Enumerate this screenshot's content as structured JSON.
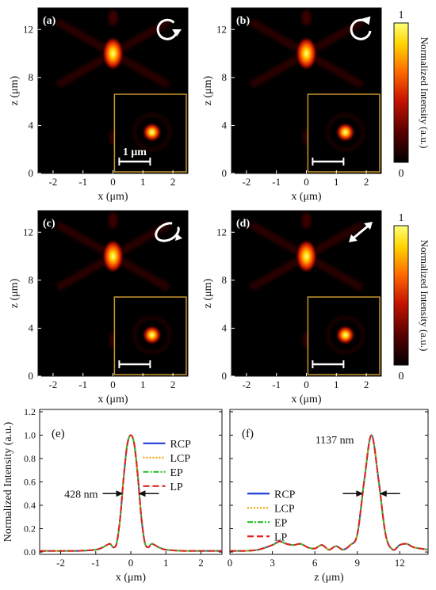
{
  "chart_data": [
    {
      "type": "heatmap",
      "panel_label": "(a)",
      "polarization_icon": "rcp-arrow-icon",
      "xlabel": "x (μm)",
      "ylabel": "z (μm)",
      "xlim": [
        -2.5,
        2.5
      ],
      "ylim": [
        0,
        13.8
      ],
      "xticks": [
        "-2",
        "-1",
        "0",
        "1",
        "2"
      ],
      "yticks": [
        "0",
        "4",
        "8",
        "12"
      ],
      "focus_x": 0.0,
      "focus_z": 10.0,
      "inset_scalebar_label": "1 μm"
    },
    {
      "type": "heatmap",
      "panel_label": "(b)",
      "polarization_icon": "lcp-arrow-icon",
      "xlabel": "x (μm)",
      "ylabel": "z (μm)",
      "xlim": [
        -2.5,
        2.5
      ],
      "ylim": [
        0,
        13.8
      ],
      "xticks": [
        "-2",
        "-1",
        "0",
        "1",
        "2"
      ],
      "yticks": [
        "0",
        "4",
        "8",
        "12"
      ],
      "focus_x": 0.0,
      "focus_z": 10.0,
      "inset_scalebar_label": ""
    },
    {
      "type": "heatmap",
      "panel_label": "(c)",
      "polarization_icon": "ep-arrow-icon",
      "xlabel": "x (μm)",
      "ylabel": "z (μm)",
      "xlim": [
        -2.5,
        2.5
      ],
      "ylim": [
        0,
        13.8
      ],
      "xticks": [
        "-2",
        "-1",
        "0",
        "1",
        "2"
      ],
      "yticks": [
        "0",
        "4",
        "8",
        "12"
      ],
      "focus_x": 0.0,
      "focus_z": 10.0,
      "inset_scalebar_label": ""
    },
    {
      "type": "heatmap",
      "panel_label": "(d)",
      "polarization_icon": "lp-arrow-icon",
      "xlabel": "x (μm)",
      "ylabel": "z (μm)",
      "xlim": [
        -2.5,
        2.5
      ],
      "ylim": [
        0,
        13.8
      ],
      "xticks": [
        "-2",
        "-1",
        "0",
        "1",
        "2"
      ],
      "yticks": [
        "0",
        "4",
        "8",
        "12"
      ],
      "focus_x": 0.0,
      "focus_z": 10.0,
      "inset_scalebar_label": ""
    },
    {
      "type": "line",
      "panel_label": "(e)",
      "xlabel": "x (μm)",
      "ylabel": "Normalized Intensity (a.u.)",
      "xlim": [
        -2.6,
        2.6
      ],
      "ylim": [
        -0.02,
        1.22
      ],
      "xticks": [
        -2,
        -1,
        0,
        1,
        2
      ],
      "yticks": [
        0.0,
        0.2,
        0.4,
        0.6,
        0.8,
        1.0,
        1.2
      ],
      "annotation": "428 nm",
      "fwhm": 0.428,
      "fwhm_center": 0.0,
      "legend_position": "top-right",
      "x": [
        -2.6,
        -2.0,
        -1.5,
        -1.0,
        -0.8,
        -0.6,
        -0.5,
        -0.4,
        -0.3,
        -0.2,
        -0.1,
        0.0,
        0.1,
        0.2,
        0.3,
        0.4,
        0.5,
        0.6,
        0.8,
        1.0,
        1.5,
        2.0,
        2.6
      ],
      "series": [
        {
          "name": "RCP",
          "values": [
            0.01,
            0.01,
            0.01,
            0.02,
            0.04,
            0.07,
            0.04,
            0.08,
            0.3,
            0.65,
            0.92,
            1.0,
            0.92,
            0.65,
            0.3,
            0.08,
            0.04,
            0.07,
            0.04,
            0.02,
            0.01,
            0.01,
            0.01
          ]
        },
        {
          "name": "LCP",
          "values": [
            0.01,
            0.01,
            0.01,
            0.02,
            0.04,
            0.07,
            0.04,
            0.08,
            0.3,
            0.65,
            0.92,
            1.0,
            0.92,
            0.65,
            0.3,
            0.08,
            0.04,
            0.07,
            0.04,
            0.02,
            0.01,
            0.01,
            0.01
          ]
        },
        {
          "name": "EP",
          "values": [
            0.01,
            0.01,
            0.01,
            0.02,
            0.04,
            0.07,
            0.04,
            0.08,
            0.3,
            0.65,
            0.92,
            1.0,
            0.92,
            0.65,
            0.3,
            0.08,
            0.04,
            0.07,
            0.04,
            0.02,
            0.01,
            0.01,
            0.01
          ]
        },
        {
          "name": "LP",
          "values": [
            0.01,
            0.01,
            0.01,
            0.02,
            0.04,
            0.07,
            0.04,
            0.08,
            0.3,
            0.65,
            0.92,
            1.0,
            0.92,
            0.65,
            0.3,
            0.08,
            0.04,
            0.07,
            0.04,
            0.02,
            0.01,
            0.01,
            0.01
          ]
        }
      ]
    },
    {
      "type": "line",
      "panel_label": "(f)",
      "xlabel": "z (μm)",
      "ylabel": "",
      "xlim": [
        0,
        14
      ],
      "ylim": [
        -0.02,
        1.22
      ],
      "xticks": [
        0,
        3,
        6,
        9,
        12
      ],
      "yticks": [
        0.0,
        0.2,
        0.4,
        0.6,
        0.8,
        1.0,
        1.2
      ],
      "annotation": "1137 nm",
      "fwhm": 1.137,
      "fwhm_center": 10.0,
      "legend_position": "middle-left",
      "x": [
        0,
        1,
        2,
        3,
        3.5,
        4,
        4.5,
        5,
        5.5,
        6,
        6.5,
        7,
        7.5,
        8,
        8.5,
        9,
        9.5,
        10,
        10.5,
        11,
        11.5,
        12,
        12.5,
        13,
        14
      ],
      "series": [
        {
          "name": "RCP",
          "values": [
            0.01,
            0.01,
            0.02,
            0.06,
            0.09,
            0.07,
            0.06,
            0.07,
            0.04,
            0.03,
            0.06,
            0.02,
            0.05,
            0.02,
            0.06,
            0.15,
            0.62,
            1.0,
            0.62,
            0.15,
            0.02,
            0.06,
            0.07,
            0.04,
            0.02
          ]
        },
        {
          "name": "LCP",
          "values": [
            0.01,
            0.01,
            0.02,
            0.06,
            0.09,
            0.07,
            0.06,
            0.07,
            0.04,
            0.03,
            0.06,
            0.02,
            0.05,
            0.02,
            0.06,
            0.15,
            0.62,
            1.0,
            0.62,
            0.15,
            0.02,
            0.06,
            0.07,
            0.04,
            0.02
          ]
        },
        {
          "name": "EP",
          "values": [
            0.01,
            0.01,
            0.02,
            0.06,
            0.09,
            0.07,
            0.06,
            0.07,
            0.04,
            0.03,
            0.06,
            0.02,
            0.05,
            0.02,
            0.06,
            0.15,
            0.62,
            1.0,
            0.62,
            0.15,
            0.02,
            0.06,
            0.07,
            0.04,
            0.02
          ]
        },
        {
          "name": "LP",
          "values": [
            0.01,
            0.01,
            0.02,
            0.06,
            0.09,
            0.07,
            0.06,
            0.07,
            0.04,
            0.03,
            0.06,
            0.02,
            0.05,
            0.02,
            0.06,
            0.15,
            0.62,
            1.0,
            0.62,
            0.15,
            0.02,
            0.06,
            0.07,
            0.04,
            0.02
          ]
        }
      ]
    }
  ],
  "colorbar": {
    "label": "Normalized Intensity (a.u.)",
    "min_label": "0",
    "max_label": "1",
    "colors": [
      "#000000",
      "#5a0000",
      "#c81400",
      "#ff6a00",
      "#ffd400",
      "#ffff7a"
    ]
  },
  "series_styles": {
    "RCP": {
      "color": "#1f3fd6",
      "dash": ""
    },
    "LCP": {
      "color": "#f0a000",
      "dash": "2,2"
    },
    "EP": {
      "color": "#2cc12c",
      "dash": "7,2,2,2"
    },
    "LP": {
      "color": "#e12222",
      "dash": "8,4"
    }
  },
  "inset_border_color": "#c8962e"
}
